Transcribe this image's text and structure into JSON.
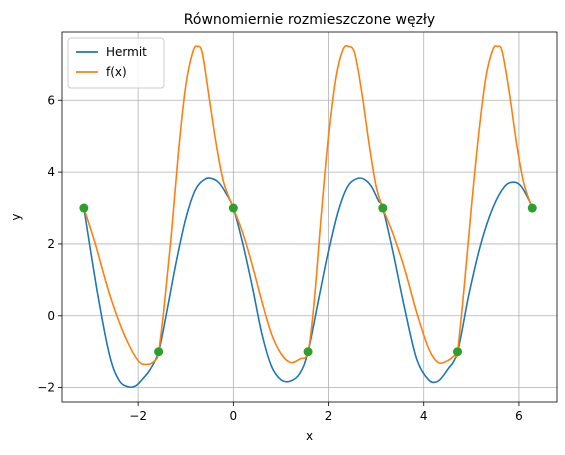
{
  "chart_data": {
    "type": "line",
    "title": "Równomiernie rozmieszczone węzły",
    "xlabel": "x",
    "ylabel": "y",
    "xlim": [
      -3.6,
      6.8
    ],
    "ylim": [
      -2.4,
      7.9
    ],
    "xticks": [
      -2,
      0,
      2,
      4,
      6
    ],
    "yticks": [
      -2,
      0,
      2,
      4,
      6
    ],
    "xtick_labels": [
      "−2",
      "0",
      "2",
      "4",
      "6"
    ],
    "ytick_labels": [
      "−2",
      "0",
      "2",
      "4",
      "6"
    ],
    "grid": true,
    "legend_position": "top-left",
    "series": [
      {
        "name": "Hermit",
        "color": "#1f77b4",
        "x": [
          -3.14,
          -2.85,
          -2.6,
          -2.4,
          -2.2,
          -2.05,
          -1.9,
          -1.75,
          -1.57,
          -1.4,
          -1.2,
          -1.0,
          -0.8,
          -0.6,
          -0.45,
          -0.3,
          -0.15,
          0.0,
          0.2,
          0.4,
          0.6,
          0.8,
          1.0,
          1.2,
          1.4,
          1.57,
          1.8,
          2.0,
          2.2,
          2.4,
          2.6,
          2.75,
          2.9,
          3.05,
          3.14,
          3.35,
          3.6,
          3.85,
          4.1,
          4.3,
          4.5,
          4.71,
          4.95,
          5.2,
          5.45,
          5.7,
          5.9,
          6.05,
          6.2,
          6.28
        ],
        "y": [
          3.0,
          0.6,
          -1.1,
          -1.8,
          -1.98,
          -1.95,
          -1.75,
          -1.5,
          -1.0,
          0.1,
          1.5,
          2.7,
          3.5,
          3.8,
          3.82,
          3.7,
          3.4,
          3.0,
          2.0,
          0.8,
          -0.5,
          -1.4,
          -1.78,
          -1.82,
          -1.6,
          -1.0,
          0.5,
          1.8,
          2.9,
          3.6,
          3.82,
          3.8,
          3.6,
          3.2,
          3.0,
          1.8,
          0.2,
          -1.2,
          -1.78,
          -1.82,
          -1.5,
          -1.0,
          0.6,
          2.0,
          3.0,
          3.6,
          3.72,
          3.6,
          3.25,
          3.0
        ]
      },
      {
        "name": "f(x)",
        "color": "#ff7f0e",
        "x": [
          -3.14,
          -2.9,
          -2.6,
          -2.3,
          -2.0,
          -1.8,
          -1.65,
          -1.57,
          -1.45,
          -1.3,
          -1.15,
          -1.0,
          -0.85,
          -0.75,
          -0.65,
          -0.5,
          -0.35,
          -0.2,
          0.0,
          0.2,
          0.4,
          0.6,
          0.8,
          1.0,
          1.2,
          1.4,
          1.57,
          1.7,
          1.85,
          2.0,
          2.15,
          2.3,
          2.42,
          2.55,
          2.7,
          2.85,
          3.0,
          3.14,
          3.35,
          3.6,
          3.85,
          4.1,
          4.3,
          4.5,
          4.65,
          4.71,
          4.85,
          5.0,
          5.15,
          5.3,
          5.45,
          5.55,
          5.65,
          5.8,
          5.95,
          6.1,
          6.28
        ],
        "y": [
          3.0,
          2.0,
          0.6,
          -0.5,
          -1.25,
          -1.35,
          -1.25,
          -1.0,
          0.3,
          2.3,
          4.6,
          6.4,
          7.35,
          7.5,
          7.3,
          6.0,
          4.7,
          3.7,
          3.0,
          2.3,
          1.4,
          0.4,
          -0.5,
          -1.05,
          -1.3,
          -1.2,
          -1.0,
          0.4,
          2.8,
          5.0,
          6.6,
          7.4,
          7.5,
          7.3,
          6.2,
          4.8,
          3.6,
          3.0,
          2.3,
          1.3,
          0.1,
          -0.9,
          -1.3,
          -1.25,
          -1.1,
          -1.0,
          0.8,
          3.0,
          5.0,
          6.6,
          7.4,
          7.5,
          7.35,
          6.2,
          4.8,
          3.7,
          3.0
        ]
      },
      {
        "name": "",
        "color": "#2ca02c",
        "marker": "circle",
        "x": [
          -3.14,
          -1.57,
          0.0,
          1.57,
          3.14,
          4.71,
          6.28
        ],
        "y": [
          3.0,
          -1.0,
          3.0,
          -1.0,
          3.0,
          -1.0,
          3.0
        ]
      }
    ]
  }
}
